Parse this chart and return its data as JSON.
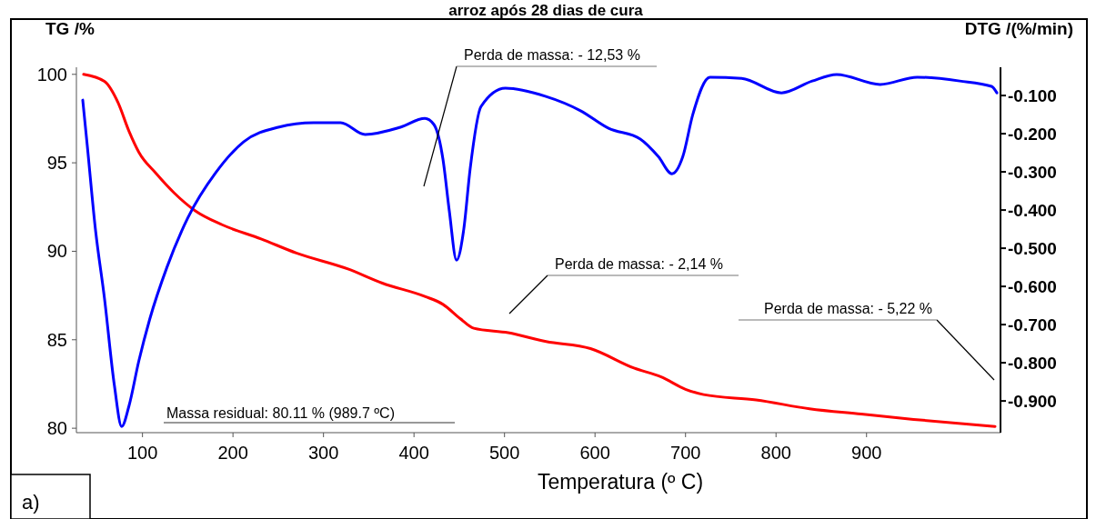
{
  "chart_data": {
    "type": "line",
    "title": "arroz após 28 dias de cura",
    "xlabel": "Temperatura (º C)",
    "ylabel": "TG /%",
    "y2label": "DTG /(%/min)",
    "xlim": [
      27,
      1048
    ],
    "xticks": [
      100,
      200,
      300,
      400,
      500,
      600,
      700,
      800,
      900
    ],
    "ylim": [
      79.75,
      100.4
    ],
    "yticks": [
      80,
      85,
      90,
      95,
      100
    ],
    "y2lim": [
      -0.983,
      -0.026
    ],
    "y2ticks": [
      {
        "value": -0.1,
        "label": "-0.100"
      },
      {
        "value": -0.2,
        "label": "-0.200"
      },
      {
        "value": -0.3,
        "label": "-0.300"
      },
      {
        "value": -0.4,
        "label": "-0.400"
      },
      {
        "value": -0.5,
        "label": "-0.500"
      },
      {
        "value": -0.6,
        "label": "-0.600"
      },
      {
        "value": -0.7,
        "label": "-0.700"
      },
      {
        "value": -0.8,
        "label": "-0.800"
      },
      {
        "value": -0.9,
        "label": "-0.900"
      }
    ],
    "grid": false,
    "marker": "none",
    "line_style": "solid",
    "series": [
      {
        "color": "#ff0000",
        "axis": "y",
        "x": [
          35,
          58,
          73,
          85,
          96,
          115,
          135,
          158,
          188,
          231,
          270,
          327,
          365,
          412,
          432,
          451,
          466,
          504,
          546,
          595,
          643,
          673,
          700,
          720,
          778,
          837,
          894,
          952,
          1042
        ],
        "values": [
          100,
          99.6,
          98.4,
          96.8,
          95.6,
          94.4,
          93.3,
          92.3,
          91.5,
          90.7,
          89.9,
          89.0,
          88.2,
          87.45,
          87.0,
          86.2,
          85.65,
          85.4,
          84.9,
          84.5,
          83.4,
          82.9,
          82.2,
          81.9,
          81.6,
          81.1,
          80.8,
          80.5,
          80.1
        ]
      },
      {
        "color": "#0000ff",
        "axis": "y2",
        "x": [
          34,
          39,
          48,
          58,
          69,
          77,
          85,
          96,
          108,
          127,
          150,
          181,
          212,
          250,
          289,
          319,
          346,
          385,
          412,
          422,
          432,
          439,
          447,
          455,
          462,
          474,
          501,
          545,
          584,
          615,
          650,
          670,
          685,
          697,
          708,
          727,
          762,
          806,
          840,
          867,
          915,
          956,
          1003,
          1038,
          1044
        ],
        "values": [
          -0.112,
          -0.231,
          -0.45,
          -0.631,
          -0.86,
          -0.967,
          -0.914,
          -0.795,
          -0.686,
          -0.55,
          -0.421,
          -0.302,
          -0.221,
          -0.183,
          -0.171,
          -0.171,
          -0.202,
          -0.183,
          -0.16,
          -0.176,
          -0.267,
          -0.402,
          -0.531,
          -0.45,
          -0.293,
          -0.129,
          -0.081,
          -0.102,
          -0.14,
          -0.186,
          -0.214,
          -0.26,
          -0.305,
          -0.26,
          -0.15,
          -0.052,
          -0.055,
          -0.093,
          -0.062,
          -0.045,
          -0.071,
          -0.052,
          -0.062,
          -0.076,
          -0.093
        ]
      }
    ],
    "annotations": [
      "Perda de massa: - 12,53 %",
      "Perda de massa: - 2,14 %",
      "Perda de massa: - 5,22 %",
      "Massa residual: 80.11 % (989.7 ºC)",
      "a)"
    ]
  }
}
